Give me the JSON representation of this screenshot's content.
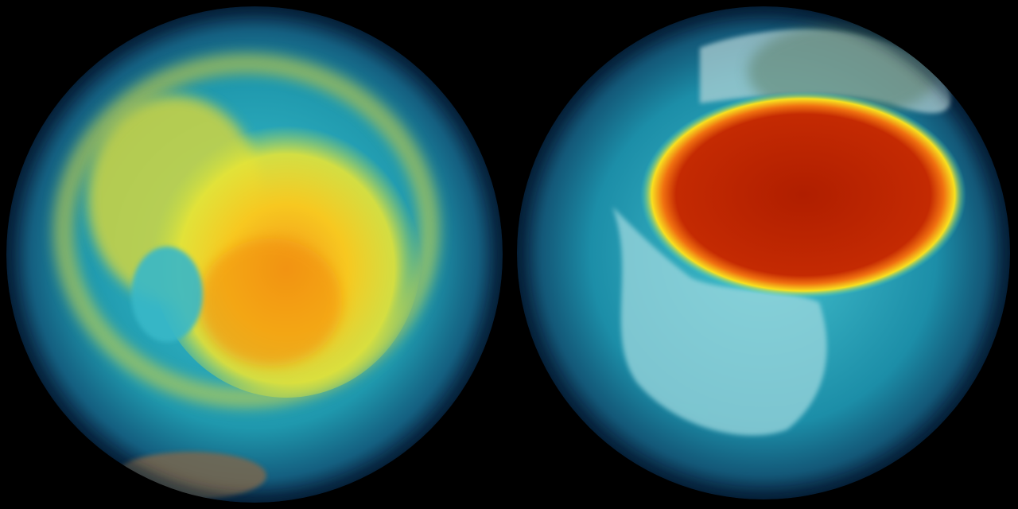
{
  "scene": {
    "background": "#000000",
    "globes": [
      {
        "view": "southern-hemisphere",
        "ocean": "#1d8fa6",
        "rim": "#0b2e4a",
        "core": "#f0a020",
        "halo": "#e8e030"
      },
      {
        "view": "northern-hemisphere",
        "ocean": "#1a8aa3",
        "rim": "#0a2a45",
        "core": "#b51f00",
        "halo": "#f5d020",
        "land": "#8fd4dc"
      }
    ]
  }
}
